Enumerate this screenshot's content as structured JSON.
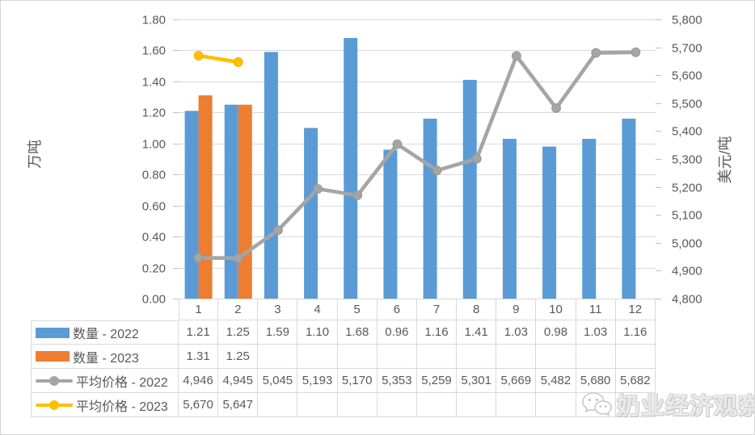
{
  "colors": {
    "qty_2022": "#5B9BD5",
    "qty_2023": "#ED7D31",
    "price_2022": "#A5A5A5",
    "price_2023": "#FFC000",
    "price_2022_marker_edge": "#989898",
    "price_2023_marker_edge": "#E8AF00",
    "gridline": "#D9D9D9",
    "tick": "#BFBFBF",
    "axis_text": "#595959",
    "table_border": "#D9D9D9",
    "watermark_gray": "#BDBDBD"
  },
  "chart_data": {
    "type": "combo-bar-line",
    "categories": [
      "1",
      "2",
      "3",
      "4",
      "5",
      "6",
      "7",
      "8",
      "9",
      "10",
      "11",
      "12"
    ],
    "series": [
      {
        "name": "数量 - 2022",
        "type": "bar",
        "axis": "left",
        "color_key": "qty_2022",
        "format": "0.00",
        "values": [
          1.21,
          1.25,
          1.59,
          1.1,
          1.68,
          0.96,
          1.16,
          1.41,
          1.03,
          0.98,
          1.03,
          1.16
        ]
      },
      {
        "name": "数量 - 2023",
        "type": "bar",
        "axis": "left",
        "color_key": "qty_2023",
        "format": "0.00",
        "values": [
          1.31,
          1.25,
          null,
          null,
          null,
          null,
          null,
          null,
          null,
          null,
          null,
          null
        ]
      },
      {
        "name": "平均价格 - 2022",
        "type": "line",
        "axis": "right",
        "color_key": "price_2022",
        "format": "#,##0",
        "values": [
          4946,
          4945,
          5045,
          5193,
          5170,
          5353,
          5259,
          5301,
          5669,
          5482,
          5680,
          5682
        ]
      },
      {
        "name": "平均价格 - 2023",
        "type": "line",
        "axis": "right",
        "color_key": "price_2023",
        "format": "#,##0",
        "values": [
          5670,
          5647,
          null,
          null,
          null,
          null,
          null,
          null,
          null,
          null,
          null,
          null
        ]
      }
    ],
    "left_axis": {
      "title": "万吨",
      "min": 0,
      "max": 1.8,
      "step": 0.2,
      "tick_labels": [
        "0.00",
        "0.20",
        "0.40",
        "0.60",
        "0.80",
        "1.00",
        "1.20",
        "1.40",
        "1.60",
        "1.80"
      ]
    },
    "right_axis": {
      "title": "美元/吨",
      "min": 4800,
      "max": 5800,
      "step": 100,
      "tick_labels": [
        "4,800",
        "4,900",
        "5,000",
        "5,100",
        "5,200",
        "5,300",
        "5,400",
        "5,500",
        "5,600",
        "5,700",
        "5,800"
      ]
    },
    "gridlines": true,
    "legend_position": "table-left"
  },
  "watermark": {
    "text": "奶业经济观察",
    "icon": "wechat-icon"
  }
}
